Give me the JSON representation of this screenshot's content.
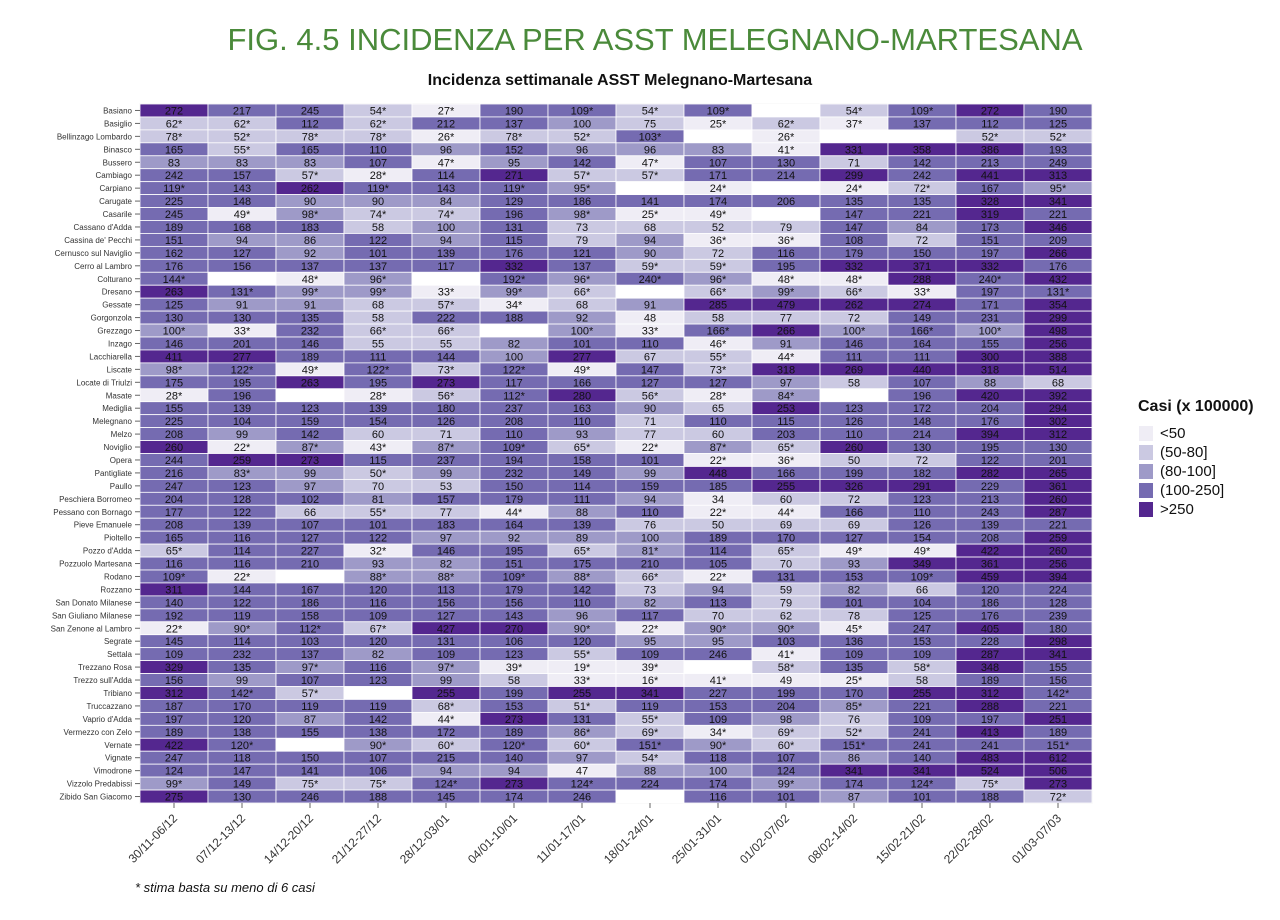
{
  "figure_title": "FIG. 4.5 INCIDENZA PER ASST MELEGNANO-MARTESANA",
  "footnote": "* stima basta su meno di 6 casi",
  "chart_data": {
    "type": "heatmap",
    "title": "Incidenza settimanale ASST Melegnano-Martesana",
    "legend": {
      "title": "Casi (x 100000)",
      "placement": "right",
      "items": [
        {
          "label": "<50",
          "color": "#efedf5"
        },
        {
          "label": "(50-80]",
          "color": "#cbc9e2"
        },
        {
          "label": "(80-100]",
          "color": "#9e9ac8"
        },
        {
          "label": "(100-250]",
          "color": "#756bb1"
        },
        {
          "label": ">250",
          "color": "#54278f"
        }
      ]
    },
    "columns": [
      "30/11-06/12",
      "07/12-13/12",
      "14/12-20/12",
      "21/12-27/12",
      "28/12-03/01",
      "04/01-10/01",
      "11/01-17/01",
      "18/01-24/01",
      "25/01-31/01",
      "01/02-07/02",
      "08/02-14/02",
      "15/02-21/02",
      "22/02-28/02",
      "01/03-07/03"
    ],
    "rows": [
      "Basiano",
      "Basiglio",
      "Bellinzago Lombardo",
      "Binasco",
      "Bussero",
      "Cambiago",
      "Carpiano",
      "Carugate",
      "Casarile",
      "Cassano d'Adda",
      "Cassina de' Pecchi",
      "Cernusco sul Naviglio",
      "Cerro al Lambro",
      "Colturano",
      "Dresano",
      "Gessate",
      "Gorgonzola",
      "Grezzago",
      "Inzago",
      "Lacchiarella",
      "Liscate",
      "Locate di Triulzi",
      "Masate",
      "Mediglia",
      "Melegnano",
      "Melzo",
      "Noviglio",
      "Opera",
      "Pantigliate",
      "Paullo",
      "Peschiera Borromeo",
      "Pessano con Bornago",
      "Pieve Emanuele",
      "Pioltello",
      "Pozzo d'Adda",
      "Pozzuolo Martesana",
      "Rodano",
      "Rozzano",
      "San Donato Milanese",
      "San Giuliano Milanese",
      "San Zenone al Lambro",
      "Segrate",
      "Settala",
      "Trezzano Rosa",
      "Trezzo sull'Adda",
      "Tribiano",
      "Truccazzano",
      "Vaprio d'Adda",
      "Vermezzo con Zelo",
      "Vernate",
      "Vignate",
      "Vimodrone",
      "Vizzolo Predabissi",
      "Zibido San Giacomo"
    ],
    "values": [
      [
        "272",
        "217",
        "245",
        "54*",
        "27*",
        "190",
        "109*",
        "54*",
        "109*",
        "",
        "54*",
        "109*",
        "272",
        "190"
      ],
      [
        "62*",
        "62*",
        "112",
        "62*",
        "212",
        "137",
        "100",
        "75",
        "25*",
        "62*",
        "37*",
        "137",
        "112",
        "125"
      ],
      [
        "78*",
        "52*",
        "78*",
        "78*",
        "26*",
        "78*",
        "52*",
        "103*",
        "",
        "26*",
        "",
        "",
        "52*",
        "52*"
      ],
      [
        "165",
        "55*",
        "165",
        "110",
        "96",
        "152",
        "96",
        "96",
        "83",
        "41*",
        "331",
        "358",
        "386",
        "193"
      ],
      [
        "83",
        "83",
        "83",
        "107",
        "47*",
        "95",
        "142",
        "47*",
        "107",
        "130",
        "71",
        "142",
        "213",
        "249"
      ],
      [
        "242",
        "157",
        "57*",
        "28*",
        "114",
        "271",
        "57*",
        "57*",
        "171",
        "214",
        "299",
        "242",
        "441",
        "313"
      ],
      [
        "119*",
        "143",
        "262",
        "119*",
        "143",
        "119*",
        "95*",
        "",
        "24*",
        "",
        "24*",
        "72*",
        "167",
        "95*"
      ],
      [
        "225",
        "148",
        "90",
        "90",
        "84",
        "129",
        "186",
        "141",
        "174",
        "206",
        "135",
        "135",
        "328",
        "341"
      ],
      [
        "245",
        "49*",
        "98*",
        "74*",
        "74*",
        "196",
        "98*",
        "25*",
        "49*",
        "",
        "147",
        "221",
        "319",
        "221"
      ],
      [
        "189",
        "168",
        "183",
        "58",
        "100",
        "131",
        "73",
        "68",
        "52",
        "79",
        "147",
        "84",
        "173",
        "346"
      ],
      [
        "151",
        "94",
        "86",
        "122",
        "94",
        "115",
        "79",
        "94",
        "36*",
        "36*",
        "108",
        "72",
        "151",
        "209"
      ],
      [
        "162",
        "127",
        "92",
        "101",
        "139",
        "176",
        "121",
        "90",
        "72",
        "116",
        "179",
        "150",
        "197",
        "266"
      ],
      [
        "176",
        "156",
        "137",
        "137",
        "117",
        "332",
        "137",
        "59*",
        "59*",
        "195",
        "332",
        "371",
        "332",
        "176"
      ],
      [
        "144*",
        "",
        "48*",
        "96*",
        "",
        "192*",
        "96*",
        "240*",
        "96*",
        "48*",
        "48*",
        "288",
        "240*",
        "432"
      ],
      [
        "263",
        "131*",
        "99*",
        "99*",
        "33*",
        "99*",
        "66*",
        "",
        "66*",
        "99*",
        "66*",
        "33*",
        "197",
        "131*"
      ],
      [
        "125",
        "91",
        "91",
        "68",
        "57*",
        "34*",
        "68",
        "91",
        "285",
        "479",
        "262",
        "274",
        "171",
        "354"
      ],
      [
        "130",
        "130",
        "135",
        "58",
        "222",
        "188",
        "92",
        "48",
        "58",
        "77",
        "72",
        "149",
        "231",
        "299"
      ],
      [
        "100*",
        "33*",
        "232",
        "66*",
        "66*",
        "",
        "100*",
        "33*",
        "166*",
        "266",
        "100*",
        "166*",
        "100*",
        "498"
      ],
      [
        "146",
        "201",
        "146",
        "55",
        "55",
        "82",
        "101",
        "110",
        "46*",
        "91",
        "146",
        "164",
        "155",
        "256"
      ],
      [
        "411",
        "277",
        "189",
        "111",
        "144",
        "100",
        "277",
        "67",
        "55*",
        "44*",
        "111",
        "111",
        "300",
        "388"
      ],
      [
        "98*",
        "122*",
        "49*",
        "122*",
        "73*",
        "122*",
        "49*",
        "147",
        "73*",
        "318",
        "269",
        "440",
        "318",
        "514"
      ],
      [
        "175",
        "195",
        "263",
        "195",
        "273",
        "117",
        "166",
        "127",
        "127",
        "97",
        "58",
        "107",
        "88",
        "68"
      ],
      [
        "28*",
        "196",
        "",
        "28*",
        "56*",
        "112*",
        "280",
        "56*",
        "28*",
        "84*",
        "",
        "196",
        "420",
        "392"
      ],
      [
        "155",
        "139",
        "123",
        "139",
        "180",
        "237",
        "163",
        "90",
        "65",
        "253",
        "123",
        "172",
        "204",
        "294"
      ],
      [
        "225",
        "104",
        "159",
        "154",
        "126",
        "208",
        "110",
        "71",
        "110",
        "115",
        "126",
        "148",
        "176",
        "302"
      ],
      [
        "208",
        "99",
        "142",
        "60",
        "71",
        "110",
        "93",
        "77",
        "60",
        "203",
        "110",
        "214",
        "394",
        "312"
      ],
      [
        "260",
        "22*",
        "87*",
        "43*",
        "87*",
        "109*",
        "65*",
        "22*",
        "87*",
        "65*",
        "260",
        "130",
        "195",
        "130"
      ],
      [
        "244",
        "259",
        "273",
        "115",
        "237",
        "194",
        "158",
        "101",
        "22*",
        "36*",
        "50",
        "72",
        "122",
        "201"
      ],
      [
        "216",
        "83*",
        "99",
        "50*",
        "99",
        "232",
        "149",
        "99",
        "448",
        "166",
        "199",
        "182",
        "282",
        "265"
      ],
      [
        "247",
        "123",
        "97",
        "70",
        "53",
        "150",
        "114",
        "159",
        "185",
        "255",
        "326",
        "291",
        "229",
        "361"
      ],
      [
        "204",
        "128",
        "102",
        "81",
        "157",
        "179",
        "111",
        "94",
        "34",
        "60",
        "72",
        "123",
        "213",
        "260"
      ],
      [
        "177",
        "122",
        "66",
        "55*",
        "77",
        "44*",
        "88",
        "110",
        "22*",
        "44*",
        "166",
        "110",
        "243",
        "287"
      ],
      [
        "208",
        "139",
        "107",
        "101",
        "183",
        "164",
        "139",
        "76",
        "50",
        "69",
        "69",
        "126",
        "139",
        "221"
      ],
      [
        "165",
        "116",
        "127",
        "122",
        "97",
        "92",
        "89",
        "100",
        "189",
        "170",
        "127",
        "154",
        "208",
        "259"
      ],
      [
        "65*",
        "114",
        "227",
        "32*",
        "146",
        "195",
        "65*",
        "81*",
        "114",
        "65*",
        "49*",
        "49*",
        "422",
        "260"
      ],
      [
        "116",
        "116",
        "210",
        "93",
        "82",
        "151",
        "175",
        "210",
        "105",
        "70",
        "93",
        "349",
        "361",
        "256"
      ],
      [
        "109*",
        "22*",
        "",
        "88*",
        "88*",
        "109*",
        "88*",
        "66*",
        "22*",
        "131",
        "153",
        "109*",
        "459",
        "394"
      ],
      [
        "311",
        "144",
        "167",
        "120",
        "113",
        "179",
        "142",
        "73",
        "94",
        "59",
        "82",
        "66",
        "120",
        "224"
      ],
      [
        "140",
        "122",
        "186",
        "116",
        "156",
        "156",
        "110",
        "82",
        "113",
        "79",
        "101",
        "104",
        "186",
        "128"
      ],
      [
        "192",
        "119",
        "158",
        "109",
        "127",
        "143",
        "96",
        "117",
        "70",
        "62",
        "78",
        "125",
        "176",
        "239"
      ],
      [
        "22*",
        "90*",
        "112*",
        "67*",
        "427",
        "270",
        "90*",
        "22*",
        "90*",
        "90*",
        "45*",
        "247",
        "405",
        "180"
      ],
      [
        "145",
        "114",
        "103",
        "120",
        "131",
        "106",
        "120",
        "95",
        "95",
        "103",
        "136",
        "153",
        "228",
        "298"
      ],
      [
        "109",
        "232",
        "137",
        "82",
        "109",
        "123",
        "55*",
        "109",
        "246",
        "41*",
        "109",
        "109",
        "287",
        "341"
      ],
      [
        "329",
        "135",
        "97*",
        "116",
        "97*",
        "39*",
        "19*",
        "39*",
        "",
        "58*",
        "135",
        "58*",
        "348",
        "155"
      ],
      [
        "156",
        "99",
        "107",
        "123",
        "99",
        "58",
        "33*",
        "16*",
        "41*",
        "49",
        "25*",
        "58",
        "189",
        "156"
      ],
      [
        "312",
        "142*",
        "57*",
        "",
        "255",
        "199",
        "255",
        "341",
        "227",
        "199",
        "170",
        "255",
        "312",
        "142*"
      ],
      [
        "187",
        "170",
        "119",
        "119",
        "68*",
        "153",
        "51*",
        "119",
        "153",
        "204",
        "85*",
        "221",
        "288",
        "221"
      ],
      [
        "197",
        "120",
        "87",
        "142",
        "44*",
        "273",
        "131",
        "55*",
        "109",
        "98",
        "76",
        "109",
        "197",
        "251"
      ],
      [
        "189",
        "138",
        "155",
        "138",
        "172",
        "189",
        "86*",
        "69*",
        "34*",
        "69*",
        "52*",
        "241",
        "413",
        "189"
      ],
      [
        "422",
        "120*",
        "",
        "90*",
        "60*",
        "120*",
        "60*",
        "151*",
        "90*",
        "60*",
        "151*",
        "241",
        "241",
        "151*"
      ],
      [
        "247",
        "118",
        "150",
        "107",
        "215",
        "140",
        "97",
        "54*",
        "118",
        "107",
        "86",
        "140",
        "483",
        "612"
      ],
      [
        "124",
        "147",
        "141",
        "106",
        "94",
        "94",
        "47",
        "88",
        "100",
        "124",
        "341",
        "341",
        "524",
        "506"
      ],
      [
        "99*",
        "149",
        "75*",
        "75*",
        "124*",
        "273",
        "124*",
        "224",
        "174",
        "99*",
        "174",
        "124*",
        "75*",
        "273"
      ],
      [
        "275",
        "130",
        "246",
        "188",
        "145",
        "174",
        "246",
        "",
        "116",
        "101",
        "87",
        "101",
        "188",
        "72*"
      ]
    ]
  }
}
